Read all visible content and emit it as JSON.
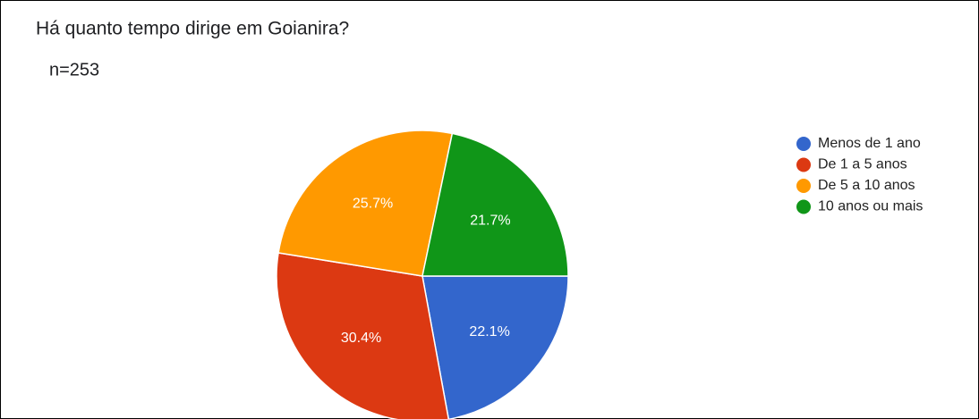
{
  "chart_data": {
    "type": "pie",
    "title": "Há quanto tempo dirige em Goianira?",
    "subtitle": "n=253",
    "categories": [
      "Menos de 1 ano",
      "De 1 a 5 anos",
      "De 5 a 10 anos",
      "10 anos ou mais"
    ],
    "values": [
      22.1,
      30.4,
      25.7,
      21.7
    ],
    "value_labels": [
      "22.1%",
      "30.4%",
      "25.7%",
      "21.7%"
    ],
    "colors": [
      "#3366cc",
      "#dc3912",
      "#ff9900",
      "#109618"
    ],
    "legend": "right"
  }
}
